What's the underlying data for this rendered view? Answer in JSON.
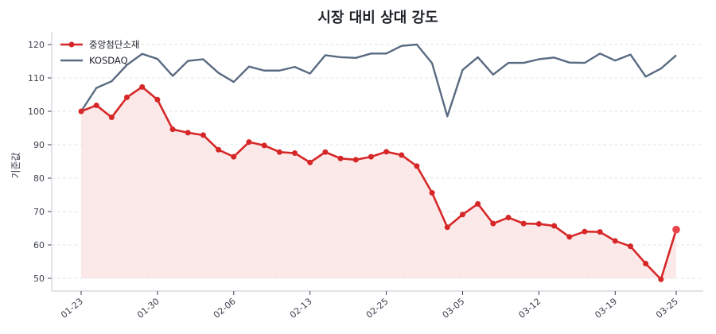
{
  "chart_data": {
    "type": "line",
    "title": "시장 대비 상대 강도",
    "xlabel": "",
    "ylabel": "기준값",
    "ylim": [
      47,
      123
    ],
    "yticks": [
      50,
      60,
      70,
      80,
      90,
      100,
      110,
      120
    ],
    "grid": true,
    "legend_position": "upper left",
    "x_tick_labels": [
      "01-23",
      "01-30",
      "02-06",
      "02-13",
      "02-25",
      "03-05",
      "03-12",
      "03-19",
      "03-25"
    ],
    "x_tick_indices": [
      0,
      5,
      10,
      15,
      20,
      25,
      30,
      35,
      39
    ],
    "x_count": 40,
    "series": [
      {
        "name": "중앙첨단소재",
        "color": "#d62728",
        "marker": "circle",
        "fill": "#fbe5e5",
        "values": [
          100.0,
          101.8,
          98.2,
          104.2,
          107.3,
          103.5,
          94.6,
          93.6,
          92.9,
          88.5,
          86.4,
          90.8,
          89.8,
          87.8,
          87.5,
          84.7,
          87.8,
          85.9,
          85.5,
          86.4,
          87.9,
          86.9,
          83.6,
          75.6,
          65.3,
          69.1,
          72.3,
          66.4,
          68.2,
          66.4,
          66.3,
          65.7,
          62.4,
          64.0,
          63.9,
          61.2,
          59.6,
          54.4,
          49.7,
          64.6
        ]
      },
      {
        "name": "KOSDAQ",
        "color": "#5a6a82",
        "marker": "none",
        "values": [
          100.0,
          107.0,
          109.0,
          113.9,
          117.2,
          115.7,
          110.6,
          115.1,
          115.6,
          111.5,
          108.8,
          113.4,
          112.2,
          112.2,
          113.3,
          111.3,
          116.8,
          116.2,
          116.0,
          117.3,
          117.3,
          119.6,
          120.0,
          114.4,
          98.5,
          112.4,
          116.2,
          111.0,
          114.5,
          114.5,
          115.6,
          116.1,
          114.6,
          114.5,
          117.3,
          115.2,
          117.0,
          110.4,
          112.8,
          116.8
        ]
      }
    ]
  }
}
